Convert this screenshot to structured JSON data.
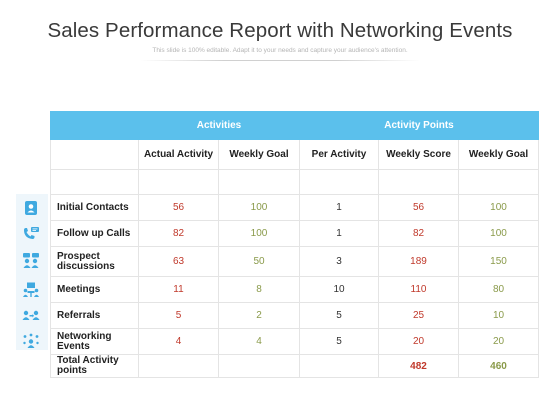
{
  "header": {
    "title": "Sales Performance Report with Networking Events",
    "subtitle": "This slide is 100% editable. Adapt it to your needs and capture your audience's attention."
  },
  "table": {
    "group_headers": {
      "activities": "Activities",
      "activity_points": "Activity Points"
    },
    "columns": [
      "Actual Activity",
      "Weekly Goal",
      "Per Activity",
      "Weekly Score",
      "Weekly Goal"
    ],
    "rows": [
      {
        "label": "Initial Contacts",
        "icon": "contact-card-icon",
        "values": [
          "56",
          "100",
          "1",
          "56",
          "100"
        ]
      },
      {
        "label": "Follow up Calls",
        "icon": "phone-chat-icon",
        "values": [
          "82",
          "100",
          "1",
          "82",
          "100"
        ]
      },
      {
        "label": "Prospect discussions",
        "icon": "people-discussion-icon",
        "values": [
          "63",
          "50",
          "3",
          "189",
          "150"
        ]
      },
      {
        "label": "Meetings",
        "icon": "meeting-icon",
        "values": [
          "11",
          "8",
          "10",
          "110",
          "80"
        ]
      },
      {
        "label": "Referrals",
        "icon": "referral-icon",
        "values": [
          "5",
          "2",
          "5",
          "25",
          "10"
        ]
      },
      {
        "label": "Networking Events",
        "icon": "network-group-icon",
        "values": [
          "4",
          "4",
          "5",
          "20",
          "20"
        ]
      }
    ],
    "total": {
      "label": "Total Activity points",
      "weekly_score": "482",
      "weekly_goal": "460"
    }
  },
  "colors": {
    "header_blue": "#5bc0ec",
    "value_red": "#c0392b",
    "value_green": "#8a9a4a",
    "icon_blue": "#3fa9e0"
  }
}
